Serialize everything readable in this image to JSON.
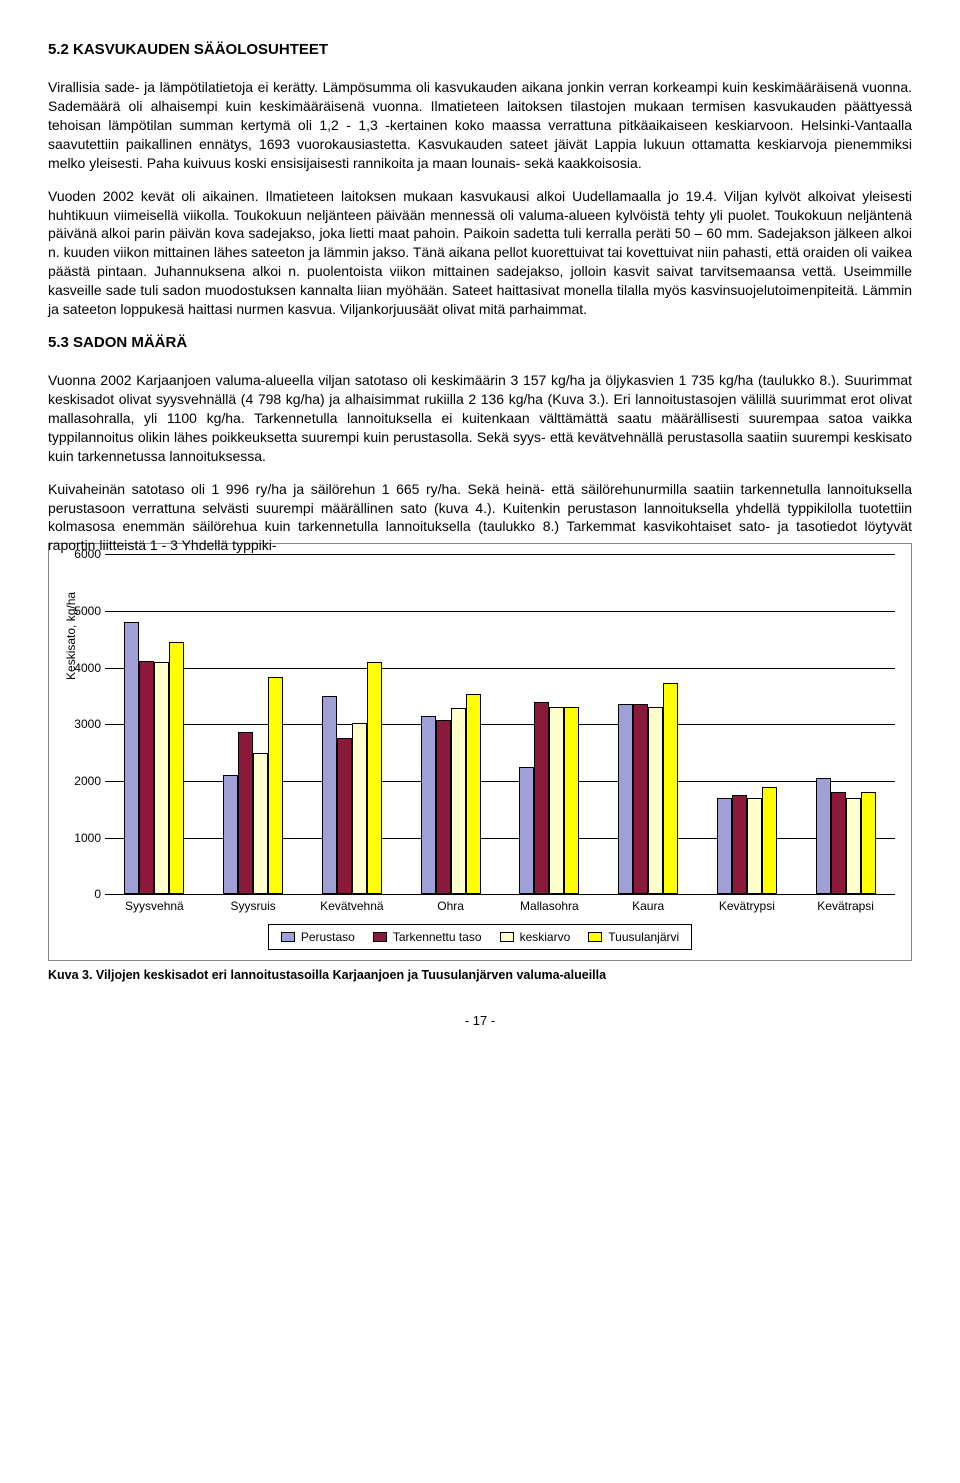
{
  "section52": {
    "heading": "5.2    KASVUKAUDEN SÄÄOLOSUHTEET",
    "p1": "Virallisia sade- ja lämpötilatietoja ei kerätty. Lämpösumma oli kasvukauden aikana jonkin verran korkeampi kuin keskimääräisenä vuonna. Sademäärä oli alhaisempi kuin keskimääräisenä vuonna. Ilmatieteen laitoksen tilastojen mukaan termisen kasvukauden päättyessä tehoisan lämpötilan summan kertymä oli 1,2 - 1,3 -kertainen koko maassa verrattuna pitkäaikaiseen keskiarvoon. Helsinki-Vantaalla saavutettiin paikallinen ennätys, 1693 vuorokausiastetta. Kasvukauden sateet jäivät Lappia lukuun ottamatta keskiarvoja pienemmiksi melko yleisesti. Paha kuivuus koski ensisijaisesti rannikoita ja maan lounais- sekä kaakkoisosia.",
    "p2": "Vuoden 2002 kevät oli aikainen. Ilmatieteen laitoksen mukaan kasvukausi alkoi Uudellamaalla jo 19.4. Viljan kylvöt alkoivat yleisesti huhtikuun viimeisellä viikolla. Toukokuun neljänteen päivään mennessä oli valuma-alueen kylvöistä tehty yli puolet. Toukokuun neljäntenä päivänä alkoi parin päivän kova sadejakso, joka lietti maat pahoin. Paikoin sadetta tuli kerralla peräti 50 – 60 mm. Sadejakson jälkeen alkoi n. kuuden viikon mittainen lähes sateeton ja lämmin jakso. Tänä aikana pellot kuorettuivat tai kovettuivat niin pahasti, että oraiden oli vaikea päästä pintaan. Juhannuksena alkoi n. puolentoista viikon mittainen sadejakso, jolloin kasvit saivat tarvitsemaansa vettä. Useimmille kasveille sade tuli sadon muodostuksen kannalta liian myöhään. Sateet haittasivat monella tilalla myös kasvinsuojelutoimenpiteitä. Lämmin ja sateeton loppukesä haittasi nurmen kasvua. Viljankorjuusäät olivat mitä parhaimmat."
  },
  "section53": {
    "heading": "5.3    SADON MÄÄRÄ",
    "p1": "Vuonna 2002 Karjaanjoen valuma-alueella viljan satotaso oli keskimäärin 3 157 kg/ha ja öljykasvien 1 735 kg/ha (taulukko 8.). Suurimmat keskisadot olivat syysvehnällä (4 798 kg/ha) ja alhaisimmat rukiilla 2 136 kg/ha (Kuva 3.). Eri lannoitustasojen välillä suurimmat erot olivat mallasohralla, yli 1100 kg/ha. Tarkennetulla lannoituksella ei kuitenkaan välttämättä saatu määrällisesti suurempaa satoa vaikka typpilannoitus olikin lähes poikkeuksetta suurempi kuin perustasolla. Sekä syys- että kevätvehnällä perustasolla saatiin suurempi keskisato kuin tarkennetussa lannoituksessa.",
    "p2": "Kuivaheinän satotaso oli 1 996 ry/ha ja säilörehun 1 665 ry/ha. Sekä heinä- että säilörehunurmilla saatiin tarkennetulla lannoituksella perustasoon verrattuna selvästi suurempi määrällinen sato (kuva 4.). Kuitenkin perustason lannoituksella yhdellä typpikilolla tuotettiin kolmasosa enemmän säilörehua kuin tarkennetulla lannoituksella (taulukko 8.)  Tarkemmat kasvikohtaiset sato- ja tasotiedot löytyvät raportin liitteistä 1 -   3  Yhdellä typpiki-"
  },
  "chart": {
    "type": "bar",
    "ylabel": "Keskisato, kg/ha",
    "ylim": [
      0,
      6000
    ],
    "ytick_step": 1000,
    "background_color": "#ffffff",
    "grid_color": "#000000",
    "categories": [
      "Syysvehnä",
      "Syysruis",
      "Kevätvehnä",
      "Ohra",
      "Mallasohra",
      "Kaura",
      "Kevätrypsi",
      "Kevätrapsi"
    ],
    "series": [
      {
        "name": "Perustaso",
        "color": "#a0a0d8",
        "values": [
          4800,
          2100,
          3500,
          3150,
          2250,
          3350,
          1700,
          2050
        ]
      },
      {
        "name": "Tarkennettu taso",
        "color": "#8B1A3A",
        "values": [
          4120,
          2870,
          2760,
          3070,
          3400,
          3350,
          1750,
          1800
        ]
      },
      {
        "name": "keskiarvo",
        "color": "#ffffcc",
        "values": [
          4100,
          2500,
          3030,
          3280,
          3300,
          3300,
          1700,
          1700
        ]
      },
      {
        "name": "Tuusulanjärvi",
        "color": "#ffff00",
        "values": [
          4450,
          3830,
          4100,
          3530,
          3300,
          3720,
          1900,
          1800
        ]
      }
    ],
    "legend_labels": [
      "Perustaso",
      "Tarkennettu taso",
      "keskiarvo",
      "Tuusulanjärvi"
    ],
    "label_fontsize": 12
  },
  "caption": "Kuva  3. Viljojen keskisadot eri lannoitustasoilla Karjaanjoen ja Tuusulanjärven valuma-alueilla",
  "pagenum": "- 17 -"
}
